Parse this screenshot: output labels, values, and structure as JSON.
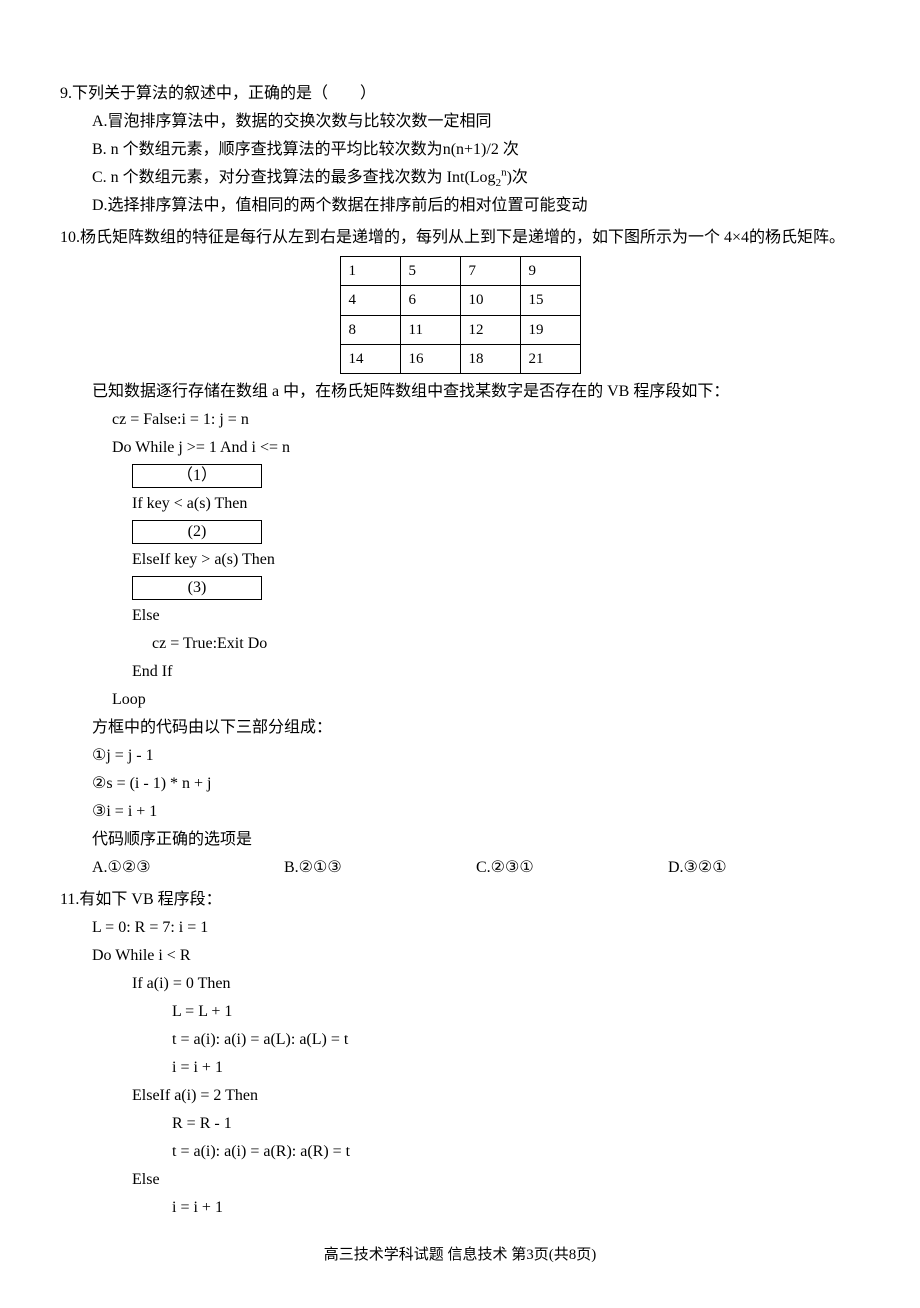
{
  "q9": {
    "num": "9.",
    "stem": "下列关于算法的叙述中，正确的是（　　）",
    "A": "A.冒泡排序算法中，数据的交换次数与比较次数一定相同",
    "B_pre": "B. n 个数组元素，顺序查找算法的平均比较次数为",
    "B_mid": "n(n+1)/2",
    "B_post": " 次",
    "C_pre": "C. n 个数组元素，对分查找算法的最多查找次数为 Int(Log",
    "C_sub": "2",
    "C_sup": "n",
    "C_post": ")次",
    "D": "D.选择排序算法中，值相同的两个数据在排序前后的相对位置可能变动"
  },
  "q10": {
    "num": "10.",
    "stem": "杨氏矩阵数组的特征是每行从左到右是递增的，每列从上到下是递增的，如下图所示为一个 4×4的杨氏矩阵。",
    "matrix": [
      [
        "1",
        "5",
        "7",
        "9"
      ],
      [
        "4",
        "6",
        "10",
        "15"
      ],
      [
        "8",
        "11",
        "12",
        "19"
      ],
      [
        "14",
        "16",
        "18",
        "21"
      ]
    ],
    "afterTable": "已知数据逐行存储在数组 a 中，在杨氏矩阵数组中查找某数字是否存在的 VB 程序段如下：",
    "code1": "cz = False:i = 1: j = n",
    "code2": "Do While j >= 1 And i <= n",
    "blank1": "（1）",
    "code3": "If key < a(s) Then",
    "blank2": "(2)",
    "code4": "ElseIf key > a(s) Then",
    "blank3": "(3)",
    "code5": "Else",
    "code6": "cz = True:Exit Do",
    "code7": "End If",
    "code8": "Loop",
    "partsIntro": "方框中的代码由以下三部分组成：",
    "p1": "①j = j - 1",
    "p2": "②s = (i - 1) * n + j",
    "p3": "③i = i + 1",
    "orderQ": "代码顺序正确的选项是",
    "opts": {
      "A": "A.①②③",
      "B": "B.②①③",
      "C": "C.②③①",
      "D": "D.③②①"
    }
  },
  "q11": {
    "num": "11.",
    "stem": "有如下 VB 程序段：",
    "code": [
      "L = 0: R = 7: i = 1",
      "Do While i < R",
      "If a(i) = 0 Then",
      "L = L + 1",
      "t = a(i): a(i) = a(L): a(L) = t",
      "i = i + 1",
      "ElseIf a(i) = 2 Then",
      "R = R - 1",
      "t = a(i): a(i) = a(R): a(R) = t",
      "Else",
      "i = i + 1"
    ]
  },
  "footer": "高三技术学科试题  信息技术  第3页(共8页)"
}
